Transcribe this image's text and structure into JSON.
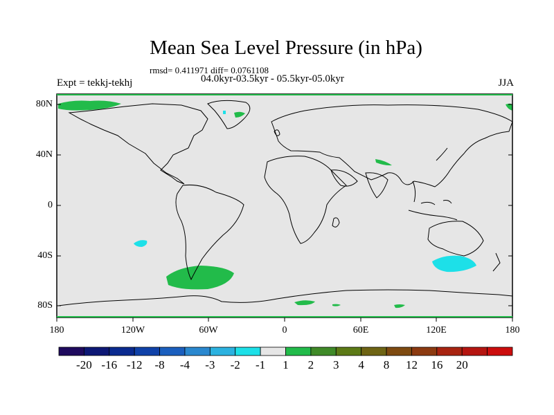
{
  "title": "Mean Sea Level Pressure (in hPa)",
  "stats_text": "rmsd= 0.411971 diff= 0.0761108",
  "period_text": "04.0kyr-03.5kyr - 05.5kyr-05.0kyr",
  "experiment_text": "Expt = tekkj-tekhj",
  "season_text": "JJA",
  "map": {
    "projection": "cylindrical-equidistant",
    "lon_range": [
      -180,
      180
    ],
    "lat_range": [
      -90,
      90
    ],
    "background_color": "#e6e6e6",
    "lat_labels": [
      "80N",
      "40N",
      "0",
      "40S",
      "80S"
    ],
    "lon_labels": [
      "180",
      "120W",
      "60W",
      "0",
      "60E",
      "120E",
      "180"
    ]
  },
  "colorbar": {
    "colors": [
      "#1f0a5e",
      "#0d1875",
      "#0a2a8f",
      "#0f41a8",
      "#1b5fbe",
      "#2a88cf",
      "#2cb2e0",
      "#1de0e8",
      "#e6e6e6",
      "#22bb4a",
      "#3f8a28",
      "#5c7a16",
      "#6e6414",
      "#7e4a10",
      "#8c3a10",
      "#a82410",
      "#b51510",
      "#cc0d0d"
    ],
    "labels": [
      "-20",
      "-16",
      "-12",
      "-8",
      "-4",
      "-3",
      "-2",
      "-1",
      "1",
      "2",
      "3",
      "4",
      "8",
      "12",
      "16",
      "20"
    ]
  },
  "anomaly_regions": [
    {
      "level": "1 to 2",
      "color": "#22bb4a",
      "location": "Arctic coast of Siberia/Europe"
    },
    {
      "level": "1 to 2",
      "color": "#22bb4a",
      "location": "Greenland"
    },
    {
      "level": "1 to 2",
      "color": "#22bb4a",
      "location": "Central Asia"
    },
    {
      "level": "1 to 2",
      "color": "#22bb4a",
      "location": "Southeast Pacific off South America"
    },
    {
      "level": "1 to 2",
      "color": "#22bb4a",
      "location": "Antarctic coast"
    },
    {
      "level": "-2 to -1",
      "color": "#1de0e8",
      "location": "South Pacific"
    },
    {
      "level": "-2 to -1",
      "color": "#1de0e8",
      "location": "South of Australia"
    },
    {
      "level": "-2 to -1",
      "color": "#1de0e8",
      "location": "Greenland"
    }
  ]
}
